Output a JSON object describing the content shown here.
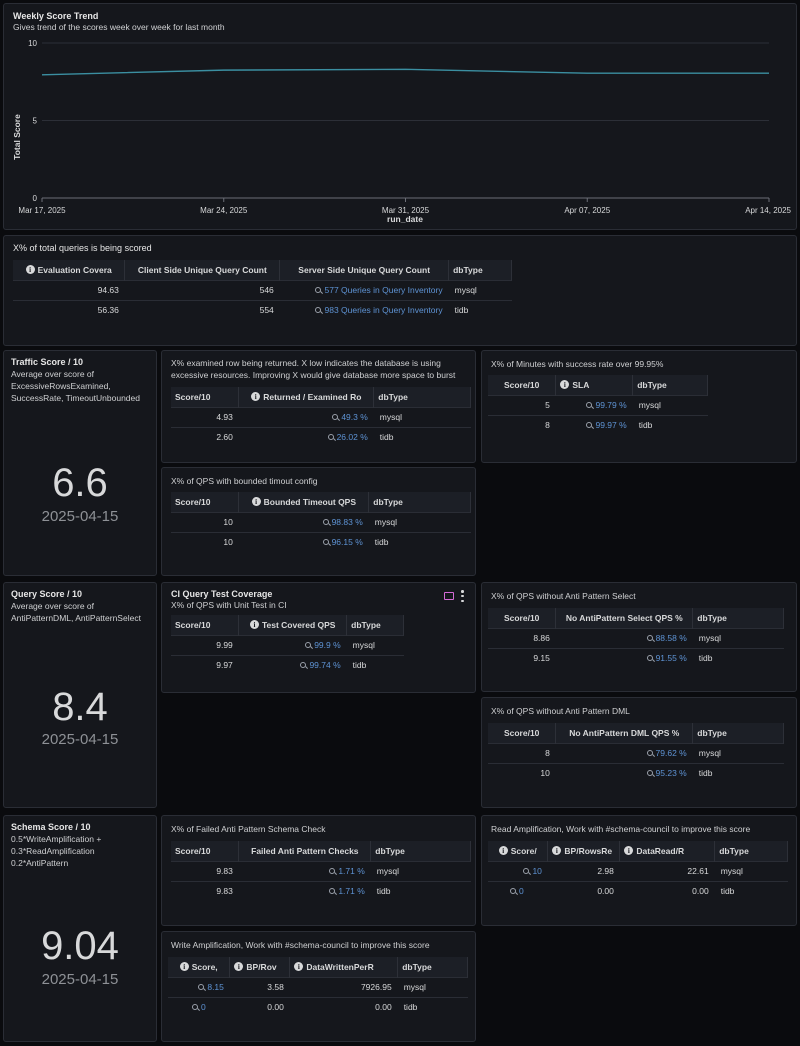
{
  "trend": {
    "title": "Weekly Score Trend",
    "subtitle": "Gives trend of the scores week over week for last month"
  },
  "chart_data": {
    "type": "line",
    "x": [
      "2025-03-17",
      "2025-03-24",
      "2025-03-31",
      "2025-04-07",
      "2025-04-14"
    ],
    "x_tick_labels": [
      "Mar 17, 2025",
      "Mar 24, 2025",
      "Mar 31, 2025",
      "Apr 07, 2025",
      "Apr 14, 2025"
    ],
    "series": [
      {
        "values": [
          7.95,
          8.25,
          8.3,
          8.05,
          8.05
        ]
      }
    ],
    "xlabel": "run_date",
    "ylabel": "Total Score",
    "ylim": [
      0,
      10
    ],
    "y_ticks": [
      "0",
      "5",
      "10"
    ],
    "line_color": "#3b8fa1",
    "grid": true
  },
  "coverage": {
    "title": "X% of total queries is being scored",
    "headers": [
      "Evaluation Covera",
      "Client Side Unique Query Count",
      "Server Side Unique Query Count",
      "dbType"
    ],
    "rows": [
      [
        "94.63",
        "546",
        "577 Queries in Query Inventory",
        "mysql"
      ],
      [
        "56.36",
        "554",
        "983 Queries in Query Inventory",
        "tidb"
      ]
    ]
  },
  "traffic": {
    "title": "Traffic Score / 10",
    "desc": [
      "Average over score of",
      "ExcessiveRowsExamined,",
      "SuccessRate, TimeoutUnbounded"
    ],
    "value": "6.6",
    "date": "2025-04-15"
  },
  "examined": {
    "title": [
      "X% examined row being returned. X low indicates the database is using",
      "excessive resources. Improving X would give database more space to burst"
    ],
    "headers": [
      "Score/10",
      "Returned / Examined Ro",
      "dbType"
    ],
    "rows": [
      [
        "4.93",
        "49.3 %",
        "mysql"
      ],
      [
        "2.60",
        "26.02 %",
        "tidb"
      ]
    ]
  },
  "sla": {
    "title": "X% of Minutes with success rate over 99.95%",
    "headers": [
      "Score/10",
      "SLA",
      "dbType"
    ],
    "rows": [
      [
        "5",
        "99.79 %",
        "mysql"
      ],
      [
        "8",
        "99.97 %",
        "tidb"
      ]
    ]
  },
  "timeout": {
    "title": "X% of QPS with bounded timout config",
    "headers": [
      "Score/10",
      "Bounded Timeout QPS",
      "dbType"
    ],
    "rows": [
      [
        "10",
        "98.83 %",
        "mysql"
      ],
      [
        "10",
        "96.15 %",
        "tidb"
      ]
    ]
  },
  "query": {
    "title": "Query Score / 10",
    "desc": [
      "Average over score of",
      "AntiPatternDML, AntiPatternSelect"
    ],
    "value": "8.4",
    "date": "2025-04-15"
  },
  "citest": {
    "title": "CI Query Test Coverage",
    "subtitle": "X% of QPS with Unit Test in CI",
    "headers": [
      "Score/10",
      "Test Covered QPS",
      "dbType"
    ],
    "rows": [
      [
        "9.99",
        "99.9 %",
        "mysql"
      ],
      [
        "9.97",
        "99.74 %",
        "tidb"
      ]
    ]
  },
  "apselect": {
    "title": "X% of QPS without Anti Pattern Select",
    "headers": [
      "Score/10",
      "No AntiPattern Select QPS %",
      "dbType"
    ],
    "rows": [
      [
        "8.86",
        "88.58 %",
        "mysql"
      ],
      [
        "9.15",
        "91.55 %",
        "tidb"
      ]
    ]
  },
  "apdml": {
    "title": "X% of QPS without Anti Pattern DML",
    "headers": [
      "Score/10",
      "No AntiPattern DML QPS %",
      "dbType"
    ],
    "rows": [
      [
        "8",
        "79.62 %",
        "mysql"
      ],
      [
        "10",
        "95.23 %",
        "tidb"
      ]
    ]
  },
  "schema": {
    "title": "Schema Score / 10",
    "desc": [
      "0.5*WriteAmplification +",
      "0.3*ReadAmplification",
      "0.2*AntiPattern"
    ],
    "value": "9.04",
    "date": "2025-04-15"
  },
  "apschema": {
    "title": "X% of Failed Anti Pattern Schema Check",
    "headers": [
      "Score/10",
      "Failed Anti Pattern Checks",
      "dbType"
    ],
    "rows": [
      [
        "9.83",
        "1.71 %",
        "mysql"
      ],
      [
        "9.83",
        "1.71 %",
        "tidb"
      ]
    ]
  },
  "readamp": {
    "title": "Read Amplification, Work with #schema-council to improve this score",
    "headers": [
      "Score/",
      "BP/RowsRe",
      "DataRead/R",
      "dbType"
    ],
    "rows": [
      [
        "10",
        "2.98",
        "22.61",
        "mysql"
      ],
      [
        "0",
        "0.00",
        "0.00",
        "tidb"
      ]
    ]
  },
  "writeamp": {
    "title": "Write Amplification, Work with #schema-council to improve this score",
    "headers": [
      "Score,",
      "BP/Rov",
      "DataWrittenPerR",
      "dbType"
    ],
    "rows": [
      [
        "8.15",
        "3.58",
        "7926.95",
        "mysql"
      ],
      [
        "0",
        "0.00",
        "0.00",
        "tidb"
      ]
    ]
  }
}
